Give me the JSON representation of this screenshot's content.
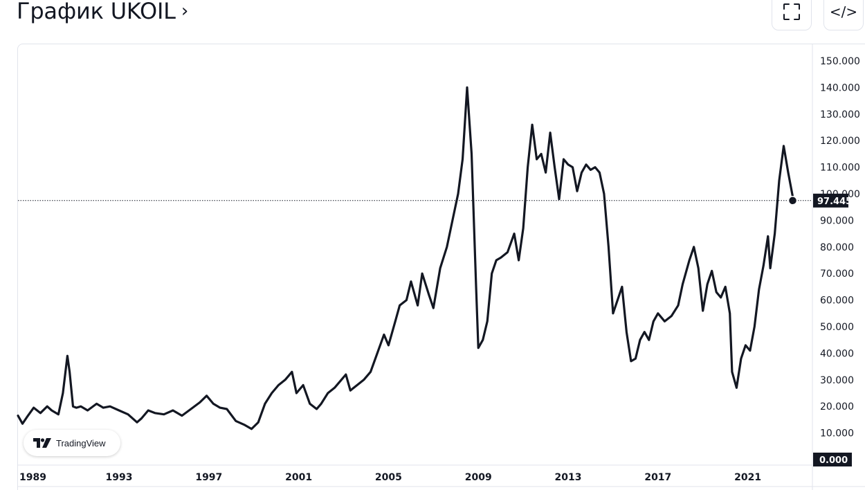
{
  "header": {
    "title": "График UKOIL",
    "chevron": "›",
    "fullscreen_icon": "fullscreen-icon",
    "embed_icon": "code-icon",
    "embed_label": "</>"
  },
  "branding": {
    "label": "TradingView",
    "icon": "tradingview-logo-icon"
  },
  "chart_data": {
    "type": "line",
    "symbol": "UKOIL",
    "title": "График UKOIL",
    "xlabel": "",
    "ylabel": "",
    "xlim": [
      1988.5,
      2024.8
    ],
    "ylim": [
      0,
      152
    ],
    "grid": false,
    "legend": "none",
    "line_color": "#131722",
    "x_ticks": [
      "1989",
      "1993",
      "1997",
      "2001",
      "2005",
      "2009",
      "2013",
      "2017",
      "2021"
    ],
    "x_tick_values": [
      1989,
      1993,
      1997,
      2001,
      2005,
      2009,
      2013,
      2017,
      2021
    ],
    "y_ticks": [
      "0.000",
      "10.000",
      "20.000",
      "30.000",
      "40.000",
      "50.000",
      "60.000",
      "70.000",
      "80.000",
      "90.000",
      "100.000",
      "110.000",
      "120.000",
      "130.000",
      "140.000",
      "150.000"
    ],
    "y_tick_values": [
      0,
      10,
      20,
      30,
      40,
      50,
      60,
      70,
      80,
      90,
      100,
      110,
      120,
      130,
      140,
      150
    ],
    "last_value": 97.445,
    "last_value_label": "97.445",
    "zero_label": "0.000",
    "series": [
      {
        "x": [
          1988.5,
          1988.7,
          1988.9,
          1989.2,
          1989.5,
          1989.8,
          1990.0,
          1990.3,
          1990.5,
          1990.7,
          1990.8,
          1990.95,
          1991.1,
          1991.3,
          1991.6,
          1992.0,
          1992.3,
          1992.6,
          1993.0,
          1993.4,
          1993.8,
          1994.0,
          1994.3,
          1994.6,
          1995.0,
          1995.4,
          1995.8,
          1996.2,
          1996.6,
          1996.9,
          1997.2,
          1997.5,
          1997.8,
          1998.2,
          1998.6,
          1998.9,
          1999.2,
          1999.5,
          1999.8,
          2000.1,
          2000.4,
          2000.7,
          2000.9,
          2001.2,
          2001.5,
          2001.8,
          2002.0,
          2002.3,
          2002.6,
          2002.9,
          2003.1,
          2003.3,
          2003.6,
          2003.9,
          2004.2,
          2004.5,
          2004.8,
          2005.0,
          2005.3,
          2005.5,
          2005.8,
          2006.0,
          2006.3,
          2006.5,
          2006.8,
          2007.0,
          2007.3,
          2007.6,
          2007.9,
          2008.1,
          2008.3,
          2008.5,
          2008.7,
          2008.9,
          2009.0,
          2009.2,
          2009.4,
          2009.6,
          2009.8,
          2010.0,
          2010.3,
          2010.6,
          2010.8,
          2011.0,
          2011.2,
          2011.4,
          2011.6,
          2011.8,
          2012.0,
          2012.2,
          2012.4,
          2012.6,
          2012.8,
          2013.0,
          2013.2,
          2013.4,
          2013.6,
          2013.8,
          2014.0,
          2014.2,
          2014.4,
          2014.6,
          2014.8,
          2015.0,
          2015.2,
          2015.4,
          2015.6,
          2015.8,
          2016.0,
          2016.2,
          2016.4,
          2016.6,
          2016.8,
          2017.0,
          2017.3,
          2017.6,
          2017.9,
          2018.1,
          2018.4,
          2018.6,
          2018.8,
          2019.0,
          2019.2,
          2019.4,
          2019.6,
          2019.8,
          2020.0,
          2020.2,
          2020.3,
          2020.5,
          2020.7,
          2020.9,
          2021.1,
          2021.3,
          2021.5,
          2021.7,
          2021.9,
          2022.0,
          2022.2,
          2022.4,
          2022.6,
          2022.8,
          2023.0
        ],
        "values": [
          16.5,
          13.5,
          16.0,
          19.5,
          17.5,
          20.0,
          18.5,
          17.0,
          25.0,
          39.0,
          33.0,
          20.0,
          19.5,
          20.0,
          18.5,
          21.0,
          19.5,
          20.0,
          18.5,
          17.0,
          14.0,
          15.5,
          18.5,
          17.5,
          17.0,
          18.5,
          16.5,
          19.0,
          21.5,
          24.0,
          21.0,
          19.5,
          19.0,
          14.5,
          13.0,
          11.5,
          14.0,
          21.0,
          25.0,
          28.0,
          30.0,
          33.0,
          25.0,
          28.0,
          21.0,
          19.0,
          21.0,
          25.0,
          27.0,
          30.0,
          32.0,
          26.0,
          28.0,
          30.0,
          33.0,
          40.0,
          47.0,
          43.0,
          52.0,
          58.0,
          60.0,
          67.0,
          58.0,
          70.0,
          62.0,
          57.0,
          72.0,
          80.0,
          92.0,
          100.0,
          113.0,
          140.0,
          115.0,
          65.0,
          42.0,
          45.0,
          52.0,
          70.0,
          75.0,
          76.0,
          78.0,
          85.0,
          75.0,
          87.0,
          110.0,
          126.0,
          113.0,
          115.0,
          108.0,
          123.0,
          110.0,
          98.0,
          113.0,
          111.0,
          110.0,
          101.0,
          108.0,
          111.0,
          109.0,
          110.0,
          108.0,
          100.0,
          80.0,
          55.0,
          60.0,
          65.0,
          48.0,
          37.0,
          38.0,
          45.0,
          48.0,
          45.0,
          52.0,
          55.0,
          52.0,
          54.0,
          58.0,
          66.0,
          75.0,
          80.0,
          72.0,
          56.0,
          66.0,
          71.0,
          63.0,
          61.0,
          65.0,
          55.0,
          33.0,
          27.0,
          38.0,
          43.0,
          41.0,
          50.0,
          64.0,
          73.0,
          84.0,
          72.0,
          85.0,
          105.0,
          118.0,
          108.0,
          99.0
        ]
      }
    ]
  }
}
